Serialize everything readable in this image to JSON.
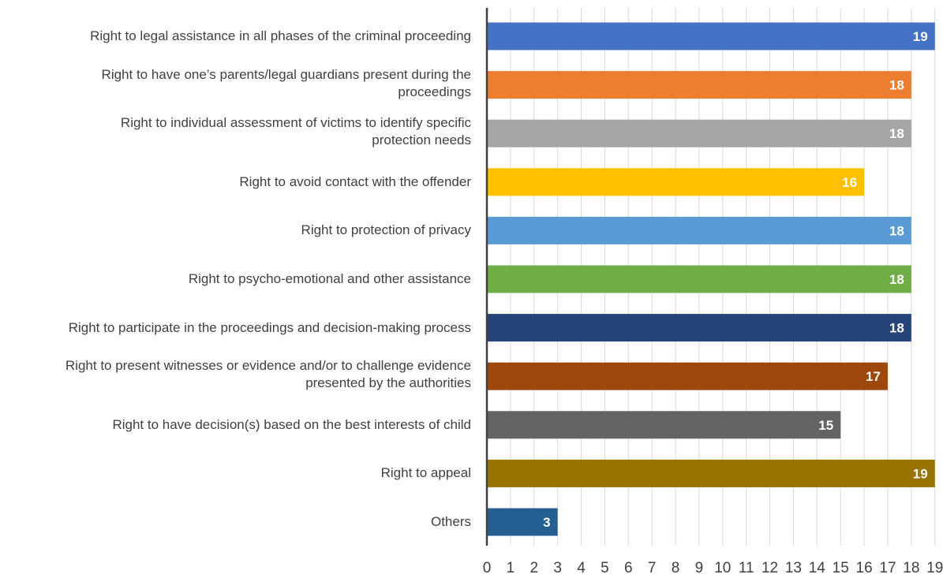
{
  "chart_data": {
    "type": "bar",
    "orientation": "horizontal",
    "title": "",
    "xlabel": "",
    "ylabel": "",
    "xlim": [
      0,
      19
    ],
    "xticks": [
      0,
      1,
      2,
      3,
      4,
      5,
      6,
      7,
      8,
      9,
      10,
      11,
      12,
      13,
      14,
      15,
      16,
      17,
      18,
      19
    ],
    "grid": true,
    "legend": "none",
    "categories": [
      "Right to legal assistance in all phases of the criminal proceeding",
      "Right to have one’s parents/legal guardians present during the proceedings",
      "Right to individual assessment of victims to identify specific protection needs",
      "Right to avoid contact with the offender",
      "Right to protection of privacy",
      "Right to psycho-emotional and other assistance",
      "Right to participate in the proceedings and decision-making process",
      "Right to present witnesses or evidence and/or to challenge evidence presented by the authorities",
      "Right to have decision(s)  based on the best interests of child",
      "Right to appeal",
      "Others"
    ],
    "label_lines": [
      [
        "Right to legal assistance in all phases of the criminal proceeding"
      ],
      [
        "Right to have one’s parents/legal guardians present during the",
        "proceedings"
      ],
      [
        "Right to individual assessment of victims to identify specific",
        "protection needs"
      ],
      [
        "Right to avoid contact with the offender"
      ],
      [
        "Right to protection of privacy"
      ],
      [
        "Right to psycho-emotional and other assistance"
      ],
      [
        "Right to participate in the proceedings and decision-making process"
      ],
      [
        "Right to present witnesses or evidence and/or to challenge evidence",
        "presented by the authorities"
      ],
      [
        "Right to have decision(s)  based on the best interests of child"
      ],
      [
        "Right to appeal"
      ],
      [
        "Others"
      ]
    ],
    "values": [
      19,
      18,
      18,
      16,
      18,
      18,
      18,
      17,
      15,
      19,
      3
    ],
    "colors": [
      "#4472C4",
      "#ED7D31",
      "#A5A5A5",
      "#FFC000",
      "#5B9BD5",
      "#70AD47",
      "#264478",
      "#9E480E",
      "#636363",
      "#997300",
      "#255E91"
    ],
    "data_labels": [
      "19",
      "18",
      "18",
      "16",
      "18",
      "18",
      "18",
      "17",
      "15",
      "19",
      "3"
    ]
  }
}
